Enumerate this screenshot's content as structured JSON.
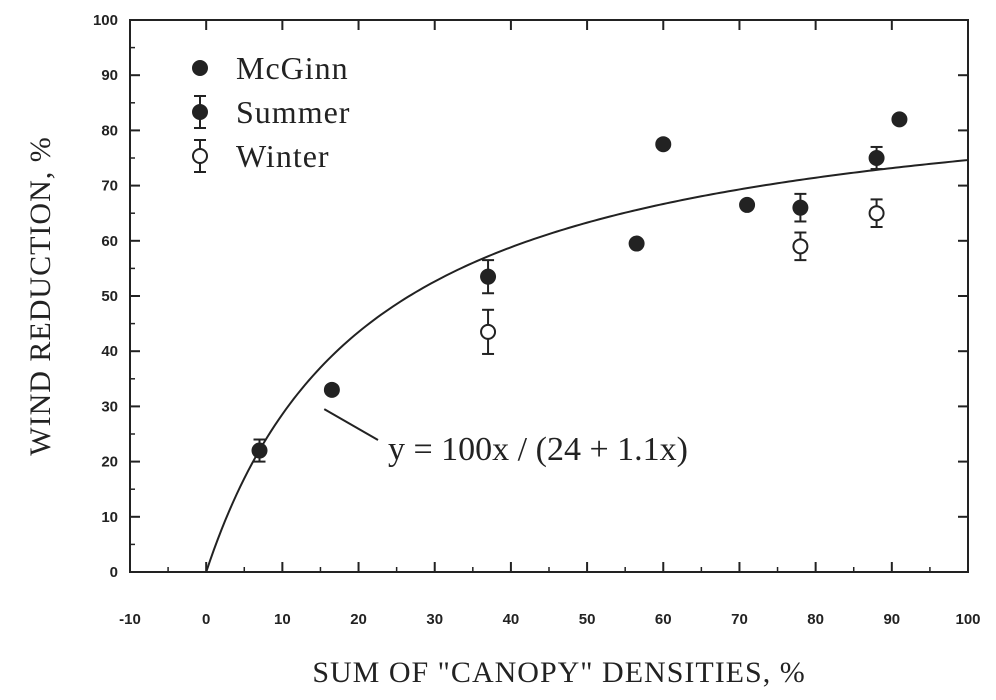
{
  "chart_data": {
    "type": "scatter",
    "xlabel": "SUM OF \"CANOPY\" DENSITIES, %",
    "ylabel": "WIND REDUCTION, %",
    "xlim": [
      -10,
      100
    ],
    "ylim": [
      0,
      100
    ],
    "xticks": [
      -10,
      0,
      10,
      20,
      30,
      40,
      50,
      60,
      70,
      80,
      90,
      100
    ],
    "yticks": [
      0,
      10,
      20,
      30,
      40,
      50,
      60,
      70,
      80,
      90,
      100
    ],
    "grid": false,
    "legend_position": "top-left",
    "series": [
      {
        "name": "McGinn",
        "marker": "filled-circle",
        "points": [
          {
            "x": 16.5,
            "y": 33
          },
          {
            "x": 56.5,
            "y": 59.5
          },
          {
            "x": 60,
            "y": 77.5
          },
          {
            "x": 71,
            "y": 66.5
          },
          {
            "x": 91,
            "y": 82
          }
        ]
      },
      {
        "name": "Summer",
        "marker": "filled-circle-errorbar",
        "points": [
          {
            "x": 7,
            "y": 22,
            "err": 2
          },
          {
            "x": 37,
            "y": 53.5,
            "err": 3
          },
          {
            "x": 78,
            "y": 66,
            "err": 2.5
          },
          {
            "x": 88,
            "y": 75,
            "err": 2
          }
        ]
      },
      {
        "name": "Winter",
        "marker": "open-circle-errorbar",
        "points": [
          {
            "x": 37,
            "y": 43.5,
            "err": 4
          },
          {
            "x": 78,
            "y": 59,
            "err": 2.5
          },
          {
            "x": 88,
            "y": 65,
            "err": 2.5
          }
        ]
      }
    ],
    "fit": {
      "equation": "y = 100x / (24 + 1.1x)",
      "numerator": 100,
      "a": 24,
      "b": 1.1,
      "x_range": [
        0,
        100
      ]
    },
    "annotations": [
      {
        "text": "y = 100x / (24 + 1.1x)",
        "points_to": {
          "x": 15.5,
          "y": 29.5
        }
      }
    ]
  }
}
